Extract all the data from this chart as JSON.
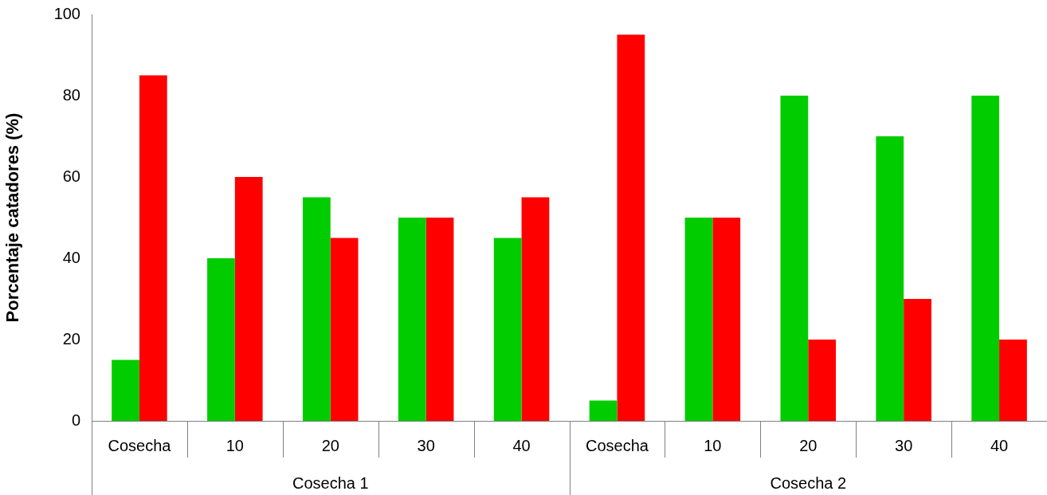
{
  "chart_data": {
    "type": "bar",
    "ylabel": "Porcentaje catadores (%)",
    "categories": [
      "Cosecha",
      "10",
      "20",
      "30",
      "40",
      "Cosecha",
      "10",
      "20",
      "30",
      "40"
    ],
    "series": [
      {
        "color": "#00cc00",
        "values": [
          15,
          40,
          55,
          50,
          45,
          5,
          50,
          80,
          70,
          80
        ]
      },
      {
        "color": "#ff0000",
        "values": [
          85,
          60,
          45,
          50,
          55,
          95,
          50,
          20,
          30,
          20
        ]
      }
    ],
    "ylim": [
      0,
      100
    ],
    "yticks": [
      0,
      20,
      40,
      60,
      80,
      100
    ],
    "grid": false,
    "legend": false,
    "annotations": [
      "Cosecha 1",
      "Cosecha 2"
    ]
  }
}
